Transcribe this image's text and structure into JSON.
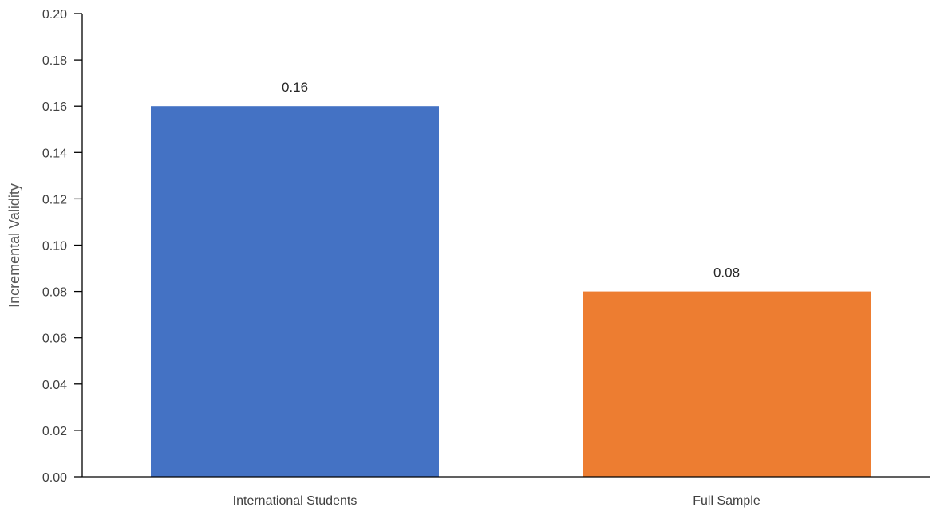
{
  "chart_data": {
    "type": "bar",
    "title": "",
    "xlabel": "",
    "ylabel": "Incremental Validity",
    "categories": [
      "International Students",
      "Full Sample"
    ],
    "values": [
      0.16,
      0.08
    ],
    "data_labels": [
      "0.16",
      "0.08"
    ],
    "colors": [
      "#4472C4",
      "#ED7D31"
    ],
    "ylim": [
      0,
      0.2
    ],
    "yticks": [
      0,
      0.02,
      0.04,
      0.06,
      0.08,
      0.1,
      0.12,
      0.14,
      0.16,
      0.18,
      0.2
    ],
    "ytick_labels": [
      "0.00",
      "0.02",
      "0.04",
      "0.06",
      "0.08",
      "0.10",
      "0.12",
      "0.14",
      "0.16",
      "0.18",
      "0.20"
    ],
    "grid": false,
    "legend": "none"
  }
}
